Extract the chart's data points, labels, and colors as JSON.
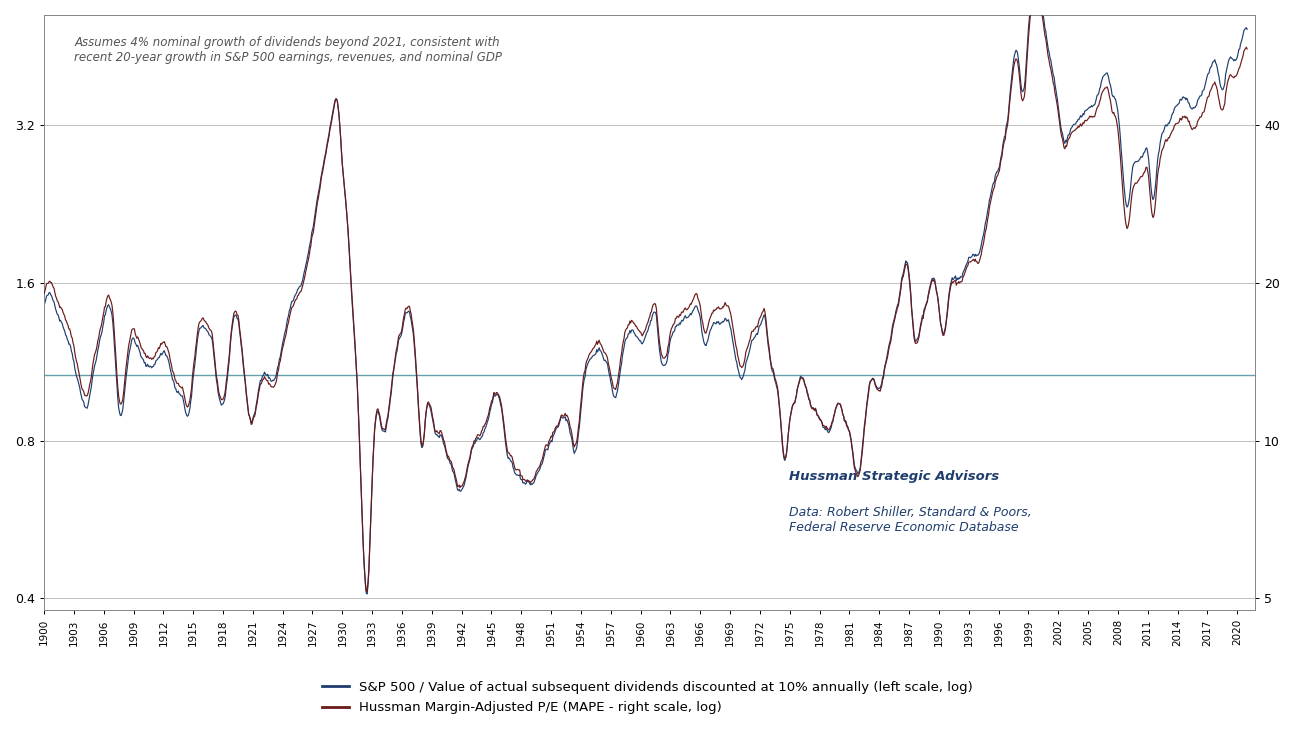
{
  "title_annotation": "Assumes 4% nominal growth of dividends beyond 2021, consistent with\nrecent 20-year growth in S&P 500 earnings, revenues, and nominal GDP",
  "annotation_color": "#555555",
  "watermark_bold": "Hussman Strategic Advisors",
  "watermark_normal": "Data: Robert Shiller, Standard & Poors,\nFederal Reserve Economic Database",
  "watermark_color": "#1F3E6E",
  "legend1": "S&P 500 / Value of actual subsequent dividends discounted at 10% annually (left scale, log)",
  "legend2": "Hussman Margin-Adjusted P/E (MAPE - right scale, log)",
  "color1": "#1F3E6E",
  "color2": "#6B1A1A",
  "hline_color": "#4A8FA0",
  "hline_value": 1.07,
  "ylim_left": [
    0.38,
    5.2
  ],
  "ylim_right": [
    4.75,
    65.0
  ],
  "yticks_left": [
    0.4,
    0.8,
    1.6,
    3.2
  ],
  "yticks_right": [
    5,
    10,
    20,
    40
  ],
  "figsize": [
    12.95,
    7.3
  ],
  "dpi": 100,
  "background_color": "#FFFFFF",
  "grid_color": "#AAAAAA",
  "start_year": 1900,
  "end_year": 2021
}
